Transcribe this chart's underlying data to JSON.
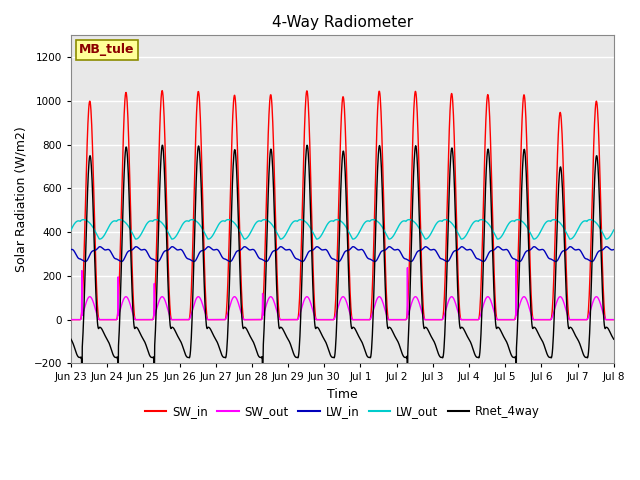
{
  "title": "4-Way Radiometer",
  "xlabel": "Time",
  "ylabel": "Solar Radiation (W/m2)",
  "ylim": [
    -200,
    1300
  ],
  "yticks": [
    -200,
    0,
    200,
    400,
    600,
    800,
    1000,
    1200
  ],
  "annotation_text": "MB_tule",
  "plot_bg_color": "#E8E8E8",
  "grid_color": "white",
  "colors": {
    "SW_in": "#FF0000",
    "SW_out": "#FF00FF",
    "LW_in": "#0000BB",
    "LW_out": "#00CCCC",
    "Rnet_4way": "#000000"
  },
  "xtick_labels": [
    "Jun 23",
    "Jun 24",
    "Jun 25",
    "Jun 26",
    "Jun 27",
    "Jun 28",
    "Jun 29",
    "Jun 30",
    "Jul 1",
    "Jul 2",
    "Jul 3",
    "Jul 4",
    "Jul 5",
    "Jul 6",
    "Jul 7",
    "Jul 8"
  ],
  "num_days": 15.0,
  "linewidth": 1.0
}
